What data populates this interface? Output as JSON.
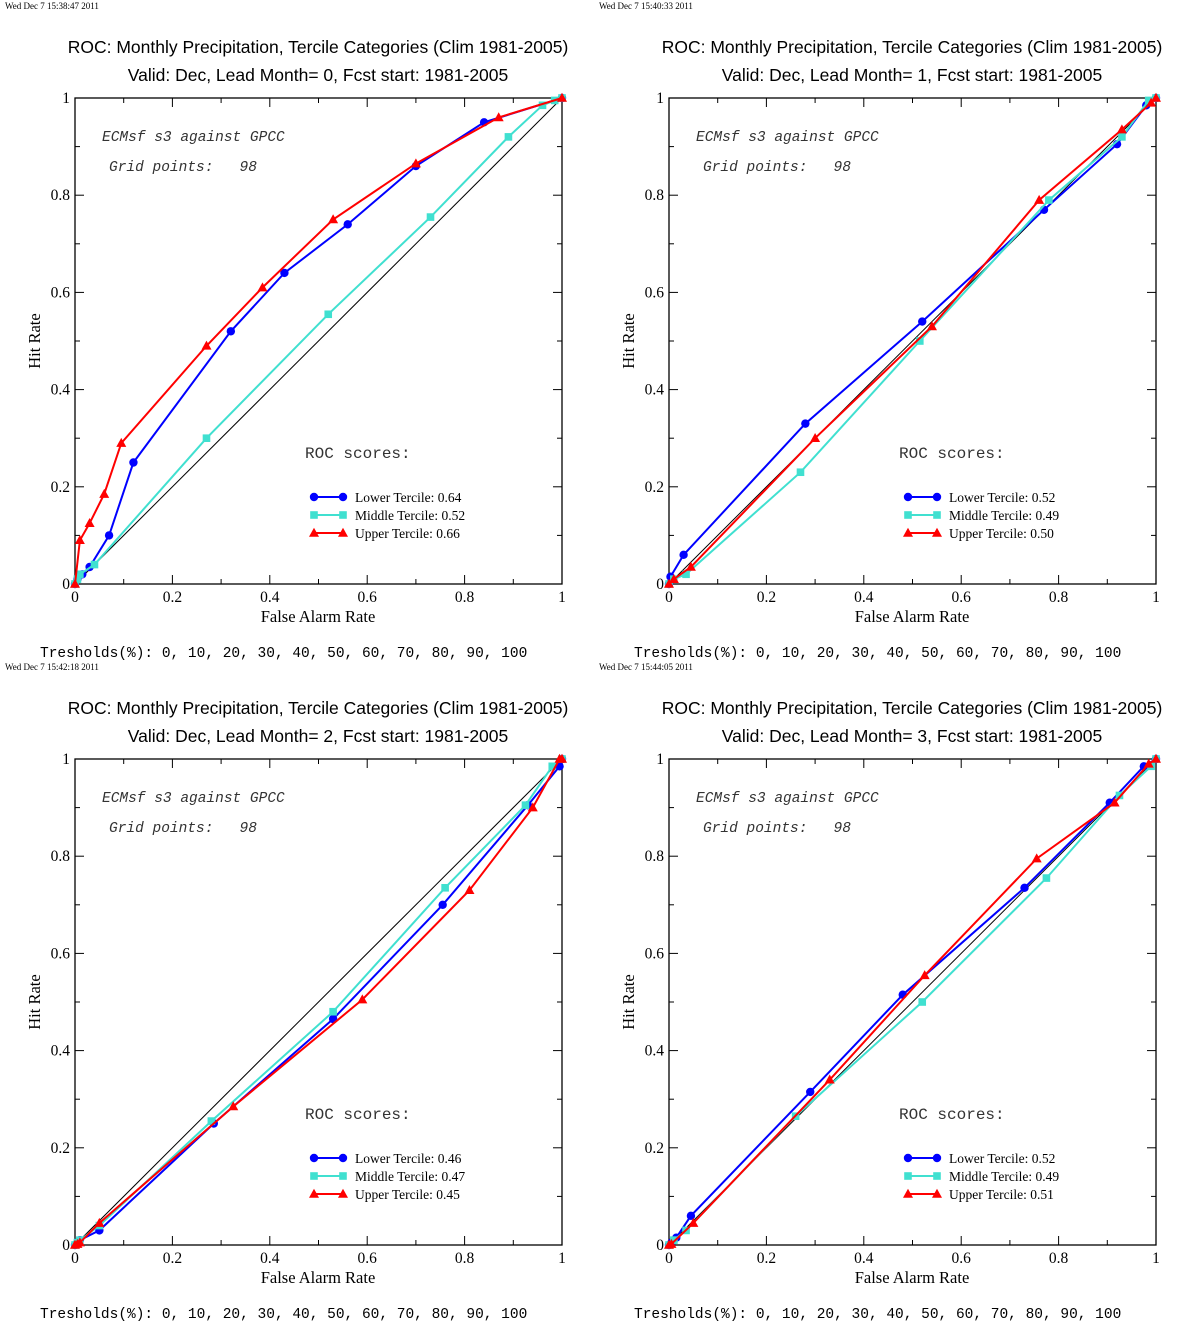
{
  "colors": {
    "lower": "#0000ff",
    "middle": "#40e0d0",
    "upper": "#ff0000",
    "diagonal": "#000000"
  },
  "chart_data": [
    {
      "type": "line",
      "timestamp": "Wed Dec  7 15:38:47 2011",
      "title": "ROC: Monthly Precipitation, Tercile Categories (Clim 1981-2005)",
      "subtitle": "Valid: Dec, Lead Month= 0, Fcst start: 1981-2005",
      "xlabel": "False Alarm Rate",
      "ylabel": "Hit Rate",
      "xlim": [
        0,
        1
      ],
      "ylim": [
        0,
        1
      ],
      "xticks": [
        "0",
        "0.2",
        "0.4",
        "0.6",
        "0.8",
        "1"
      ],
      "yticks": [
        "0",
        "0.2",
        "0.4",
        "0.6",
        "0.8",
        "1"
      ],
      "grid": false,
      "annotation_line1": "ECMsf s3 against GPCC",
      "annotation_line2": "Grid points:   98",
      "scores_header": "ROC scores:",
      "legend_position": "bottom-right",
      "thresholds": "Tresholds(%): 0, 10, 20, 30, 40, 50, 60, 70, 80, 90, 100",
      "series": [
        {
          "name": "Lower Tercile: 0.64",
          "color_key": "lower",
          "marker": "circle",
          "x": [
            0,
            0.005,
            0.015,
            0.03,
            0.07,
            0.12,
            0.32,
            0.43,
            0.56,
            0.7,
            0.84,
            1.0
          ],
          "y": [
            0,
            0.01,
            0.02,
            0.035,
            0.1,
            0.25,
            0.52,
            0.64,
            0.74,
            0.86,
            0.95,
            1.0
          ]
        },
        {
          "name": "Middle Tercile: 0.52",
          "color_key": "middle",
          "marker": "square",
          "x": [
            0,
            0.005,
            0.01,
            0.04,
            0.27,
            0.52,
            0.73,
            0.89,
            0.96,
            0.985,
            1.0
          ],
          "y": [
            0,
            0.01,
            0.02,
            0.04,
            0.3,
            0.555,
            0.755,
            0.92,
            0.985,
            0.995,
            1.0
          ]
        },
        {
          "name": "Upper Tercile: 0.66",
          "color_key": "upper",
          "marker": "triangle",
          "x": [
            0,
            0.01,
            0.03,
            0.06,
            0.095,
            0.27,
            0.385,
            0.53,
            0.7,
            0.87,
            1.0
          ],
          "y": [
            0,
            0.09,
            0.125,
            0.185,
            0.29,
            0.49,
            0.61,
            0.75,
            0.865,
            0.96,
            1.0
          ]
        }
      ]
    },
    {
      "type": "line",
      "timestamp": "Wed Dec  7 15:40:33 2011",
      "title": "ROC: Monthly Precipitation, Tercile Categories (Clim 1981-2005)",
      "subtitle": "Valid: Dec, Lead Month= 1, Fcst start: 1981-2005",
      "xlabel": "False Alarm Rate",
      "ylabel": "Hit Rate",
      "xlim": [
        0,
        1
      ],
      "ylim": [
        0,
        1
      ],
      "xticks": [
        "0",
        "0.2",
        "0.4",
        "0.6",
        "0.8",
        "1"
      ],
      "yticks": [
        "0",
        "0.2",
        "0.4",
        "0.6",
        "0.8",
        "1"
      ],
      "grid": false,
      "annotation_line1": "ECMsf s3 against GPCC",
      "annotation_line2": "Grid points:   98",
      "scores_header": "ROC scores:",
      "legend_position": "bottom-right",
      "thresholds": "Tresholds(%): 0, 10, 20, 30, 40, 50, 60, 70, 80, 90, 100",
      "series": [
        {
          "name": "Lower Tercile: 0.52",
          "color_key": "lower",
          "marker": "circle",
          "x": [
            0,
            0.003,
            0.03,
            0.28,
            0.52,
            0.77,
            0.92,
            0.98,
            1.0
          ],
          "y": [
            0,
            0.015,
            0.06,
            0.33,
            0.54,
            0.77,
            0.905,
            0.985,
            1.0
          ]
        },
        {
          "name": "Middle Tercile: 0.49",
          "color_key": "middle",
          "marker": "square",
          "x": [
            0,
            0.01,
            0.035,
            0.27,
            0.515,
            0.78,
            0.93,
            0.985,
            1.0
          ],
          "y": [
            0,
            0.01,
            0.02,
            0.23,
            0.5,
            0.79,
            0.92,
            0.995,
            1.0
          ]
        },
        {
          "name": "Upper Tercile: 0.50",
          "color_key": "upper",
          "marker": "triangle",
          "x": [
            0,
            0.01,
            0.045,
            0.3,
            0.54,
            0.76,
            0.93,
            0.99,
            1.0
          ],
          "y": [
            0,
            0.01,
            0.035,
            0.3,
            0.53,
            0.79,
            0.935,
            0.99,
            1.0
          ]
        }
      ]
    },
    {
      "type": "line",
      "timestamp": "Wed Dec  7 15:42:18 2011",
      "title": "ROC: Monthly Precipitation, Tercile Categories (Clim 1981-2005)",
      "subtitle": "Valid: Dec, Lead Month= 2, Fcst start: 1981-2005",
      "xlabel": "False Alarm Rate",
      "ylabel": "Hit Rate",
      "xlim": [
        0,
        1
      ],
      "ylim": [
        0,
        1
      ],
      "xticks": [
        "0",
        "0.2",
        "0.4",
        "0.6",
        "0.8",
        "1"
      ],
      "yticks": [
        "0",
        "0.2",
        "0.4",
        "0.6",
        "0.8",
        "1"
      ],
      "grid": false,
      "annotation_line1": "ECMsf s3 against GPCC",
      "annotation_line2": "Grid points:   98",
      "scores_header": "ROC scores:",
      "legend_position": "bottom-right",
      "thresholds": "Tresholds(%): 0, 10, 20, 30, 40, 50, 60, 70, 80, 90, 100",
      "series": [
        {
          "name": "Lower Tercile: 0.46",
          "color_key": "lower",
          "marker": "circle",
          "x": [
            0,
            0.005,
            0.01,
            0.05,
            0.285,
            0.53,
            0.755,
            0.93,
            0.995,
            1.0
          ],
          "y": [
            0,
            0.005,
            0.01,
            0.03,
            0.25,
            0.465,
            0.7,
            0.905,
            0.985,
            1.0
          ]
        },
        {
          "name": "Middle Tercile: 0.47",
          "color_key": "middle",
          "marker": "square",
          "x": [
            0,
            0.005,
            0.01,
            0.05,
            0.28,
            0.53,
            0.76,
            0.925,
            0.98,
            1.0
          ],
          "y": [
            0,
            0.005,
            0.01,
            0.04,
            0.255,
            0.48,
            0.735,
            0.905,
            0.985,
            1.0
          ]
        },
        {
          "name": "Upper Tercile: 0.45",
          "color_key": "upper",
          "marker": "triangle",
          "x": [
            0,
            0.005,
            0.01,
            0.05,
            0.325,
            0.59,
            0.81,
            0.94,
            0.995,
            1.0
          ],
          "y": [
            0,
            0.002,
            0.005,
            0.045,
            0.285,
            0.505,
            0.73,
            0.9,
            1.0,
            1.0
          ]
        }
      ]
    },
    {
      "type": "line",
      "timestamp": "Wed Dec  7 15:44:05 2011",
      "title": "ROC: Monthly Precipitation, Tercile Categories (Clim 1981-2005)",
      "subtitle": "Valid: Dec, Lead Month= 3, Fcst start: 1981-2005",
      "xlabel": "False Alarm Rate",
      "ylabel": "Hit Rate",
      "xlim": [
        0,
        1
      ],
      "ylim": [
        0,
        1
      ],
      "xticks": [
        "0",
        "0.2",
        "0.4",
        "0.6",
        "0.8",
        "1"
      ],
      "yticks": [
        "0",
        "0.2",
        "0.4",
        "0.6",
        "0.8",
        "1"
      ],
      "grid": false,
      "annotation_line1": "ECMsf s3 against GPCC",
      "annotation_line2": "Grid points:   98",
      "scores_header": "ROC scores:",
      "legend_position": "bottom-right",
      "thresholds": "Tresholds(%): 0, 10, 20, 30, 40, 50, 60, 70, 80, 90, 100",
      "series": [
        {
          "name": "Lower Tercile: 0.52",
          "color_key": "lower",
          "marker": "circle",
          "x": [
            0,
            0.005,
            0.015,
            0.045,
            0.29,
            0.48,
            0.73,
            0.905,
            0.975,
            1.0
          ],
          "y": [
            0,
            0.005,
            0.015,
            0.06,
            0.315,
            0.515,
            0.735,
            0.91,
            0.985,
            1.0
          ]
        },
        {
          "name": "Middle Tercile: 0.49",
          "color_key": "middle",
          "marker": "square",
          "x": [
            0,
            0.01,
            0.035,
            0.26,
            0.52,
            0.775,
            0.925,
            0.99,
            1.0
          ],
          "y": [
            0,
            0.01,
            0.03,
            0.265,
            0.5,
            0.755,
            0.925,
            0.985,
            1.0
          ]
        },
        {
          "name": "Upper Tercile: 0.51",
          "color_key": "upper",
          "marker": "triangle",
          "x": [
            0,
            0.005,
            0.05,
            0.33,
            0.525,
            0.755,
            0.915,
            0.985,
            1.0
          ],
          "y": [
            0,
            0.002,
            0.045,
            0.34,
            0.555,
            0.795,
            0.91,
            0.99,
            1.0
          ]
        }
      ]
    }
  ]
}
